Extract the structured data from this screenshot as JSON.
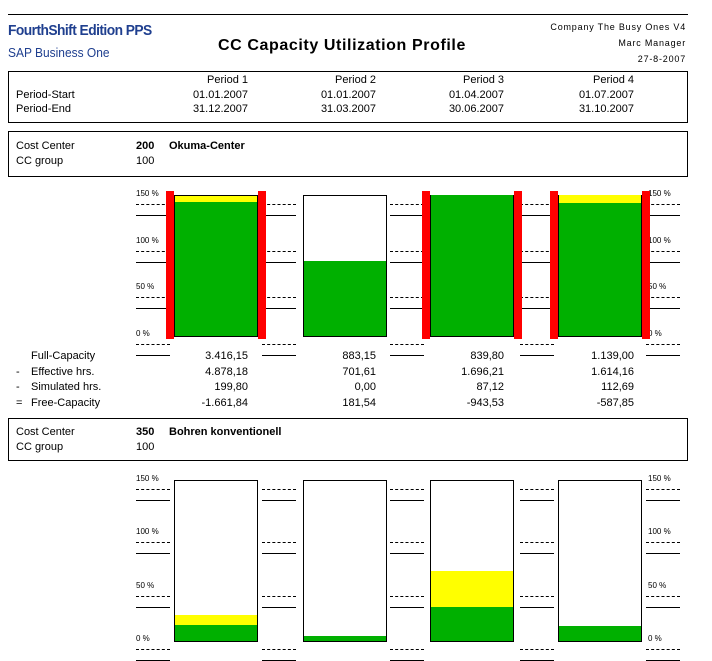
{
  "header": {
    "logo_line1": "FourthShift Edition PPS",
    "logo_line2": "SAP Business One",
    "title": "CC Capacity Utilization Profile",
    "company": "Company The Busy Ones V4",
    "user": "Marc Manager",
    "date": "27-8-2007"
  },
  "periods": {
    "row_start_label": "Period-Start",
    "row_end_label": "Period-End",
    "items": [
      {
        "name": "Period 1",
        "start": "01.01.2007",
        "end": "31.12.2007"
      },
      {
        "name": "Period 2",
        "start": "01.01.2007",
        "end": "31.03.2007"
      },
      {
        "name": "Period 3",
        "start": "01.04.2007",
        "end": "30.06.2007"
      },
      {
        "name": "Period 4",
        "start": "01.07.2007",
        "end": "31.10.2007"
      }
    ]
  },
  "axis_labels": [
    "150 %",
    "100 %",
    "50 %",
    "0 %"
  ],
  "metric_labels": [
    "Full-Capacity",
    "Effective hrs.",
    "Simulated hrs.",
    "Free-Capacity"
  ],
  "metric_prefixes": [
    "",
    "-",
    "-",
    "="
  ],
  "cost_centers": [
    {
      "cc_label": "Cost Center",
      "group_label": "CC group",
      "code": "200",
      "name": "Okuma-Center",
      "group": "100",
      "metrics": [
        [
          "3.416,15",
          "883,15",
          "839,80",
          "1.139,00"
        ],
        [
          "4.878,18",
          "701,61",
          "1.696,21",
          "1.614,16"
        ],
        [
          "199,80",
          "0,00",
          "87,12",
          "112,69"
        ],
        [
          "-1.661,84",
          "181,54",
          "-943,53",
          "-587,85"
        ]
      ]
    },
    {
      "cc_label": "Cost Center",
      "group_label": "CC group",
      "code": "350",
      "name": "Bohren konventionell",
      "group": "100"
    }
  ],
  "chart_data": [
    {
      "type": "bar",
      "categories": [
        "Period 1",
        "Period 2",
        "Period 3",
        "Period 4"
      ],
      "ylim": [
        0,
        150
      ],
      "series": [
        {
          "name": "Effective hrs.",
          "values": [
            142.8,
            79.4,
            150,
            141.7
          ]
        },
        {
          "name": "Simulated hrs.",
          "values": [
            5.8,
            0,
            0,
            8.3
          ]
        }
      ],
      "overload_marker": [
        true,
        false,
        true,
        true
      ],
      "colors": {
        "effective": "#00b000",
        "simulated": "#ffff00",
        "overload": "#ff0000"
      }
    },
    {
      "type": "bar",
      "categories": [
        "Period 1",
        "Period 2",
        "Period 3",
        "Period 4"
      ],
      "ylim": [
        0,
        150
      ],
      "series": [
        {
          "name": "Effective hrs.",
          "values": [
            14,
            4,
            31,
            13
          ]
        },
        {
          "name": "Simulated hrs.",
          "values": [
            9,
            0,
            34,
            0
          ]
        }
      ],
      "overload_marker": [
        false,
        false,
        false,
        false
      ],
      "colors": {
        "effective": "#00b000",
        "simulated": "#ffff00",
        "overload": "#ff0000"
      }
    }
  ]
}
